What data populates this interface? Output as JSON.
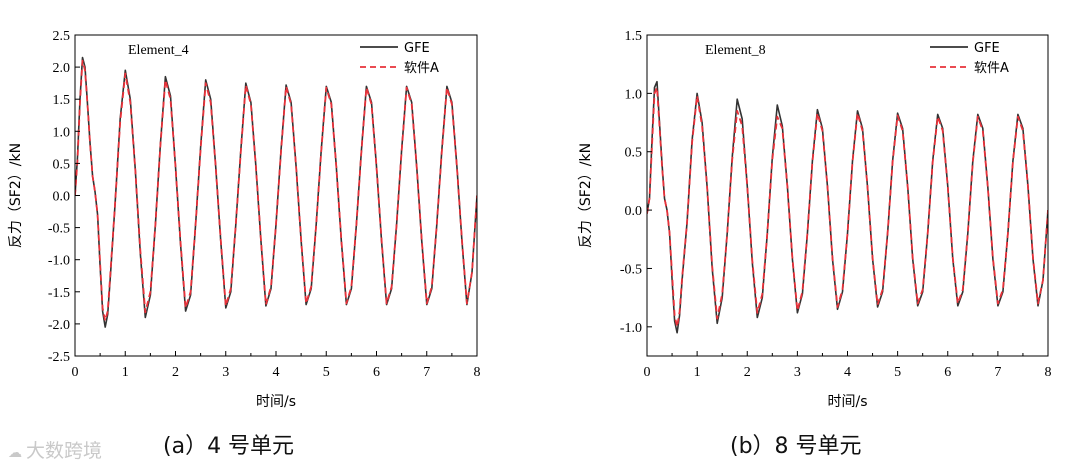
{
  "chart_data": [
    {
      "type": "line",
      "annotation": "Element_4",
      "xlabel": "时间/s",
      "ylabel": "反力（SF2）/kN",
      "xlim": [
        0,
        8
      ],
      "ylim": [
        -2.5,
        2.5
      ],
      "xticks": [
        "0",
        "1",
        "2",
        "3",
        "4",
        "5",
        "6",
        "7",
        "8"
      ],
      "yticks": [
        "2.5",
        "2.0",
        "1.5",
        "1.0",
        "0.5",
        "0.0",
        "-0.5",
        "-1.0",
        "-1.5",
        "-2.0",
        "-2.5"
      ],
      "legend_position": "top-right",
      "series": [
        {
          "name": "GFE",
          "color": "#333333",
          "style": "solid",
          "x": [
            0,
            0.05,
            0.1,
            0.15,
            0.2,
            0.25,
            0.3,
            0.35,
            0.4,
            0.45,
            0.5,
            0.55,
            0.6,
            0.65,
            0.7,
            0.8,
            0.9,
            1.0,
            1.1,
            1.2,
            1.3,
            1.4,
            1.5,
            1.6,
            1.7,
            1.8,
            1.9,
            2.0,
            2.1,
            2.2,
            2.3,
            2.4,
            2.5,
            2.6,
            2.7,
            2.8,
            2.9,
            3.0,
            3.1,
            3.2,
            3.3,
            3.4,
            3.5,
            3.6,
            3.7,
            3.8,
            3.9,
            4.0,
            4.1,
            4.2,
            4.3,
            4.4,
            4.5,
            4.6,
            4.7,
            4.8,
            4.9,
            5.0,
            5.1,
            5.2,
            5.3,
            5.4,
            5.5,
            5.6,
            5.7,
            5.8,
            5.9,
            6.0,
            6.1,
            6.2,
            6.3,
            6.4,
            6.5,
            6.6,
            6.7,
            6.8,
            6.9,
            7.0,
            7.1,
            7.2,
            7.3,
            7.4,
            7.5,
            7.6,
            7.7,
            7.8,
            7.9,
            8.0
          ],
          "y": [
            0,
            0.6,
            1.5,
            2.15,
            2.0,
            1.4,
            0.8,
            0.3,
            0.05,
            -0.3,
            -1.1,
            -1.8,
            -2.05,
            -1.85,
            -1.3,
            -0.1,
            1.2,
            1.95,
            1.5,
            0.4,
            -0.9,
            -1.9,
            -1.55,
            -0.45,
            0.8,
            1.85,
            1.55,
            0.45,
            -0.75,
            -1.8,
            -1.55,
            -0.45,
            0.75,
            1.8,
            1.5,
            0.45,
            -0.7,
            -1.75,
            -1.5,
            -0.45,
            0.7,
            1.75,
            1.45,
            0.45,
            -0.7,
            -1.72,
            -1.45,
            -0.45,
            0.7,
            1.72,
            1.45,
            0.45,
            -0.7,
            -1.7,
            -1.45,
            -0.45,
            0.7,
            1.7,
            1.45,
            0.45,
            -0.7,
            -1.7,
            -1.45,
            -0.45,
            0.7,
            1.7,
            1.45,
            0.45,
            -0.7,
            -1.7,
            -1.45,
            -0.45,
            0.7,
            1.7,
            1.45,
            0.45,
            -0.7,
            -1.7,
            -1.45,
            -0.45,
            0.7,
            1.7,
            1.45,
            0.45,
            -0.7,
            -1.7,
            -1.2,
            0.0
          ]
        },
        {
          "name": "软件A",
          "color": "#e8323a",
          "style": "dashed",
          "x": [
            0,
            0.05,
            0.1,
            0.15,
            0.2,
            0.25,
            0.3,
            0.35,
            0.4,
            0.45,
            0.5,
            0.55,
            0.6,
            0.65,
            0.7,
            0.8,
            0.9,
            1.0,
            1.1,
            1.2,
            1.3,
            1.4,
            1.5,
            1.6,
            1.7,
            1.8,
            1.9,
            2.0,
            2.1,
            2.2,
            2.3,
            2.4,
            2.5,
            2.6,
            2.7,
            2.8,
            2.9,
            3.0,
            3.1,
            3.2,
            3.3,
            3.4,
            3.5,
            3.6,
            3.7,
            3.8,
            3.9,
            4.0,
            4.1,
            4.2,
            4.3,
            4.4,
            4.5,
            4.6,
            4.7,
            4.8,
            4.9,
            5.0,
            5.1,
            5.2,
            5.3,
            5.4,
            5.5,
            5.6,
            5.7,
            5.8,
            5.9,
            6.0,
            6.1,
            6.2,
            6.3,
            6.4,
            6.5,
            6.6,
            6.7,
            6.8,
            6.9,
            7.0,
            7.1,
            7.2,
            7.3,
            7.4,
            7.5,
            7.6,
            7.7,
            7.8,
            7.9,
            8.0
          ],
          "y": [
            0,
            0.55,
            1.45,
            2.1,
            1.95,
            1.4,
            0.8,
            0.3,
            0.05,
            -0.3,
            -1.05,
            -1.75,
            -1.95,
            -1.8,
            -1.25,
            -0.1,
            1.15,
            1.9,
            1.45,
            0.4,
            -0.85,
            -1.82,
            -1.5,
            -0.45,
            0.78,
            1.8,
            1.5,
            0.45,
            -0.72,
            -1.75,
            -1.5,
            -0.45,
            0.72,
            1.75,
            1.45,
            0.45,
            -0.68,
            -1.72,
            -1.45,
            -0.45,
            0.68,
            1.72,
            1.42,
            0.45,
            -0.68,
            -1.7,
            -1.42,
            -0.45,
            0.68,
            1.7,
            1.42,
            0.45,
            -0.68,
            -1.68,
            -1.42,
            -0.45,
            0.68,
            1.68,
            1.42,
            0.45,
            -0.68,
            -1.68,
            -1.42,
            -0.45,
            0.68,
            1.68,
            1.42,
            0.45,
            -0.68,
            -1.68,
            -1.42,
            -0.45,
            0.68,
            1.68,
            1.42,
            0.45,
            -0.68,
            -1.68,
            -1.42,
            -0.45,
            0.68,
            1.68,
            1.42,
            0.45,
            -0.68,
            -1.68,
            -1.2,
            0.0
          ]
        }
      ]
    },
    {
      "type": "line",
      "annotation": "Element_8",
      "xlabel": "时间/s",
      "ylabel": "反力（SF2）/kN",
      "xlim": [
        0,
        8
      ],
      "ylim": [
        -1.25,
        1.5
      ],
      "xticks": [
        "0",
        "1",
        "2",
        "3",
        "4",
        "5",
        "6",
        "7",
        "8"
      ],
      "yticks": [
        "1.5",
        "1.0",
        "0.5",
        "0.0",
        "-0.5",
        "-1.0"
      ],
      "legend_position": "top-right",
      "series": [
        {
          "name": "GFE",
          "color": "#333333",
          "style": "solid",
          "x": [
            0,
            0.05,
            0.1,
            0.15,
            0.2,
            0.25,
            0.3,
            0.35,
            0.4,
            0.45,
            0.5,
            0.55,
            0.6,
            0.65,
            0.7,
            0.8,
            0.9,
            1.0,
            1.1,
            1.2,
            1.3,
            1.4,
            1.5,
            1.6,
            1.7,
            1.8,
            1.9,
            2.0,
            2.1,
            2.2,
            2.3,
            2.4,
            2.5,
            2.6,
            2.7,
            2.8,
            2.9,
            3.0,
            3.1,
            3.2,
            3.3,
            3.4,
            3.5,
            3.6,
            3.7,
            3.8,
            3.9,
            4.0,
            4.1,
            4.2,
            4.3,
            4.4,
            4.5,
            4.6,
            4.7,
            4.8,
            4.9,
            5.0,
            5.1,
            5.2,
            5.3,
            5.4,
            5.5,
            5.6,
            5.7,
            5.8,
            5.9,
            6.0,
            6.1,
            6.2,
            6.3,
            6.4,
            6.5,
            6.6,
            6.7,
            6.8,
            6.9,
            7.0,
            7.1,
            7.2,
            7.3,
            7.4,
            7.5,
            7.6,
            7.7,
            7.8,
            7.9,
            8.0
          ],
          "y": [
            -0.03,
            0.1,
            0.6,
            1.05,
            1.1,
            0.75,
            0.4,
            0.1,
            0.0,
            -0.2,
            -0.6,
            -0.95,
            -1.05,
            -0.9,
            -0.6,
            -0.1,
            0.6,
            1.0,
            0.75,
            0.2,
            -0.5,
            -0.97,
            -0.75,
            -0.2,
            0.45,
            0.95,
            0.78,
            0.2,
            -0.45,
            -0.92,
            -0.75,
            -0.2,
            0.45,
            0.9,
            0.72,
            0.2,
            -0.42,
            -0.88,
            -0.72,
            -0.2,
            0.42,
            0.86,
            0.7,
            0.2,
            -0.42,
            -0.85,
            -0.7,
            -0.2,
            0.42,
            0.85,
            0.7,
            0.2,
            -0.42,
            -0.83,
            -0.7,
            -0.2,
            0.42,
            0.83,
            0.7,
            0.2,
            -0.42,
            -0.82,
            -0.7,
            -0.2,
            0.42,
            0.82,
            0.7,
            0.2,
            -0.42,
            -0.82,
            -0.7,
            -0.2,
            0.42,
            0.82,
            0.7,
            0.2,
            -0.42,
            -0.82,
            -0.7,
            -0.2,
            0.42,
            0.82,
            0.7,
            0.2,
            -0.42,
            -0.82,
            -0.6,
            0.0
          ]
        },
        {
          "name": "软件A",
          "color": "#e8323a",
          "style": "dashed",
          "x": [
            0,
            0.05,
            0.1,
            0.15,
            0.2,
            0.25,
            0.3,
            0.35,
            0.4,
            0.45,
            0.5,
            0.55,
            0.6,
            0.65,
            0.7,
            0.8,
            0.9,
            1.0,
            1.1,
            1.2,
            1.3,
            1.4,
            1.5,
            1.6,
            1.7,
            1.8,
            1.9,
            2.0,
            2.1,
            2.2,
            2.3,
            2.4,
            2.5,
            2.6,
            2.7,
            2.8,
            2.9,
            3.0,
            3.1,
            3.2,
            3.3,
            3.4,
            3.5,
            3.6,
            3.7,
            3.8,
            3.9,
            4.0,
            4.1,
            4.2,
            4.3,
            4.4,
            4.5,
            4.6,
            4.7,
            4.8,
            4.9,
            5.0,
            5.1,
            5.2,
            5.3,
            5.4,
            5.5,
            5.6,
            5.7,
            5.8,
            5.9,
            6.0,
            6.1,
            6.2,
            6.3,
            6.4,
            6.5,
            6.6,
            6.7,
            6.8,
            6.9,
            7.0,
            7.1,
            7.2,
            7.3,
            7.4,
            7.5,
            7.6,
            7.7,
            7.8,
            7.9,
            8.0
          ],
          "y": [
            -0.03,
            0.1,
            0.55,
            1.0,
            1.05,
            0.72,
            0.38,
            0.1,
            0.0,
            -0.2,
            -0.55,
            -0.9,
            -1.0,
            -0.87,
            -0.58,
            -0.1,
            0.58,
            0.98,
            0.72,
            0.2,
            -0.48,
            -0.93,
            -0.72,
            -0.2,
            0.43,
            0.85,
            0.72,
            0.2,
            -0.43,
            -0.88,
            -0.72,
            -0.2,
            0.43,
            0.8,
            0.7,
            0.2,
            -0.41,
            -0.86,
            -0.7,
            -0.2,
            0.41,
            0.83,
            0.68,
            0.2,
            -0.41,
            -0.83,
            -0.68,
            -0.2,
            0.41,
            0.83,
            0.68,
            0.2,
            -0.41,
            -0.81,
            -0.68,
            -0.2,
            0.41,
            0.81,
            0.68,
            0.2,
            -0.41,
            -0.8,
            -0.68,
            -0.2,
            0.41,
            0.8,
            0.68,
            0.2,
            -0.41,
            -0.8,
            -0.68,
            -0.2,
            0.41,
            0.8,
            0.68,
            0.2,
            -0.41,
            -0.8,
            -0.68,
            -0.2,
            0.41,
            0.8,
            0.68,
            0.2,
            -0.41,
            -0.8,
            -0.6,
            0.0
          ]
        }
      ]
    }
  ],
  "captions": [
    "(a）4 号单元",
    "(b）8 号单元"
  ],
  "watermark": "大数跨境"
}
